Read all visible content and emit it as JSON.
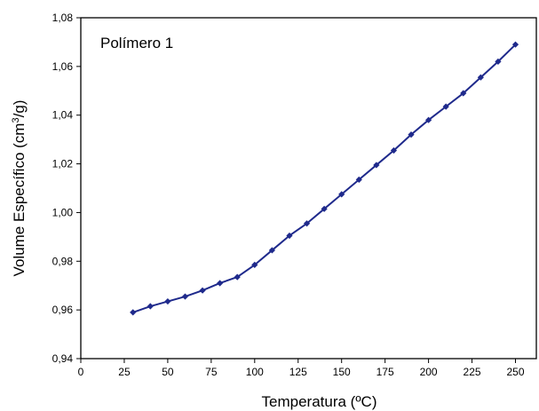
{
  "chart_data": {
    "type": "line",
    "title": "",
    "annotation": "Polímero 1",
    "xlabel": "Temperatura (ºC)",
    "ylabel_prefix": "Volume Específico (cm",
    "ylabel_sup": "3",
    "ylabel_suffix": "/g)",
    "xlim": [
      0,
      262
    ],
    "ylim": [
      0.94,
      1.08
    ],
    "x_ticks": [
      0,
      25,
      50,
      75,
      100,
      125,
      150,
      175,
      200,
      225,
      250
    ],
    "x_tick_labels": [
      "0",
      "25",
      "50",
      "75",
      "100",
      "125",
      "150",
      "175",
      "200",
      "225",
      "250"
    ],
    "y_ticks": [
      0.94,
      0.96,
      0.98,
      1.0,
      1.02,
      1.04,
      1.06,
      1.08
    ],
    "y_tick_labels": [
      "0,94",
      "0,96",
      "0,98",
      "1,00",
      "1,02",
      "1,04",
      "1,06",
      "1,08"
    ],
    "grid": false,
    "legend": "none",
    "series": [
      {
        "color": "#1f2a8c",
        "marker": "diamond",
        "x": [
          30,
          40,
          50,
          60,
          70,
          80,
          90,
          100,
          110,
          120,
          130,
          140,
          150,
          160,
          170,
          180,
          190,
          200,
          210,
          220,
          230,
          240,
          250
        ],
        "y": [
          0.959,
          0.9615,
          0.9635,
          0.9655,
          0.968,
          0.971,
          0.9735,
          0.9785,
          0.9845,
          0.9905,
          0.9955,
          1.0015,
          1.0075,
          1.0135,
          1.0195,
          1.0255,
          1.032,
          1.038,
          1.0435,
          1.049,
          1.0555,
          1.062,
          1.069
        ]
      }
    ]
  }
}
